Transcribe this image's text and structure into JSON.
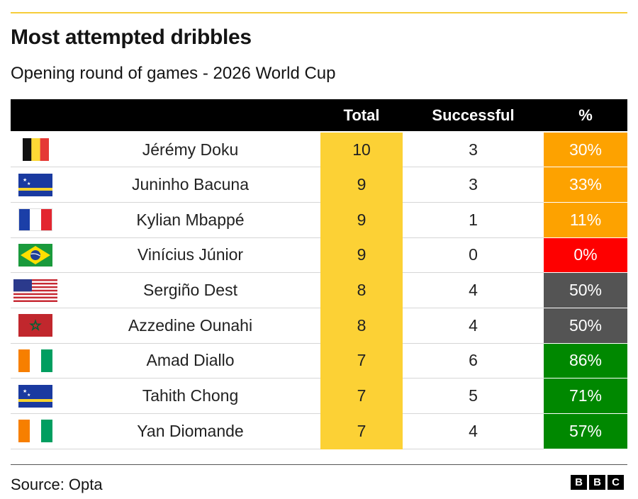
{
  "header": {
    "title": "Most attempted dribbles",
    "subtitle": "Opening round of games - 2026 World Cup"
  },
  "table": {
    "columns": [
      "",
      "",
      "Total",
      "Successful",
      "%"
    ],
    "rows": [
      {
        "flag": "belgium-flag",
        "player": "Jérémy Doku",
        "total": "10",
        "successful": "3",
        "pct": "30%",
        "pct_color": "#fda200"
      },
      {
        "flag": "curacao-flag",
        "player": "Juninho Bacuna",
        "total": "9",
        "successful": "3",
        "pct": "33%",
        "pct_color": "#fda200"
      },
      {
        "flag": "france-flag",
        "player": "Kylian Mbappé",
        "total": "9",
        "successful": "1",
        "pct": "11%",
        "pct_color": "#fda200"
      },
      {
        "flag": "brazil-flag",
        "player": "Vinícius Júnior",
        "total": "9",
        "successful": "0",
        "pct": "0%",
        "pct_color": "#fe0000"
      },
      {
        "flag": "usa-flag",
        "player": "Sergiño Dest",
        "total": "8",
        "successful": "4",
        "pct": "50%",
        "pct_color": "#545454"
      },
      {
        "flag": "morocco-flag",
        "player": "Azzedine Ounahi",
        "total": "8",
        "successful": "4",
        "pct": "50%",
        "pct_color": "#545454"
      },
      {
        "flag": "ivory-coast-flag",
        "player": "Amad Diallo",
        "total": "7",
        "successful": "6",
        "pct": "86%",
        "pct_color": "#008800"
      },
      {
        "flag": "curacao-flag",
        "player": "Tahith Chong",
        "total": "7",
        "successful": "5",
        "pct": "71%",
        "pct_color": "#008800"
      },
      {
        "flag": "ivory-coast-flag",
        "player": "Yan Diomande",
        "total": "7",
        "successful": "4",
        "pct": "57%",
        "pct_color": "#008800"
      }
    ]
  },
  "chart_data": {
    "type": "table",
    "title": "Most attempted dribbles",
    "subtitle": "Opening round of games - 2026 World Cup",
    "columns": [
      "Total",
      "Successful",
      "%"
    ],
    "categories": [
      "Jérémy Doku",
      "Juninho Bacuna",
      "Kylian Mbappé",
      "Vinícius Júnior",
      "Sergiño Dest",
      "Azzedine Ounahi",
      "Amad Diallo",
      "Tahith Chong",
      "Yan Diomande"
    ],
    "series": [
      {
        "name": "Total",
        "values": [
          10,
          9,
          9,
          9,
          8,
          8,
          7,
          7,
          7
        ]
      },
      {
        "name": "Successful",
        "values": [
          3,
          3,
          1,
          0,
          4,
          4,
          6,
          5,
          4
        ]
      },
      {
        "name": "%",
        "values": [
          30,
          33,
          11,
          0,
          50,
          50,
          86,
          71,
          57
        ]
      }
    ],
    "colors": {
      "total_column": "#fcd135",
      "header": "#000000",
      "pct_low": "#fda200",
      "pct_zero": "#fe0000",
      "pct_mid": "#545454",
      "pct_high": "#008800"
    }
  },
  "footer": {
    "source": "Source: Opta",
    "logo_letters": [
      "B",
      "B",
      "C"
    ]
  }
}
